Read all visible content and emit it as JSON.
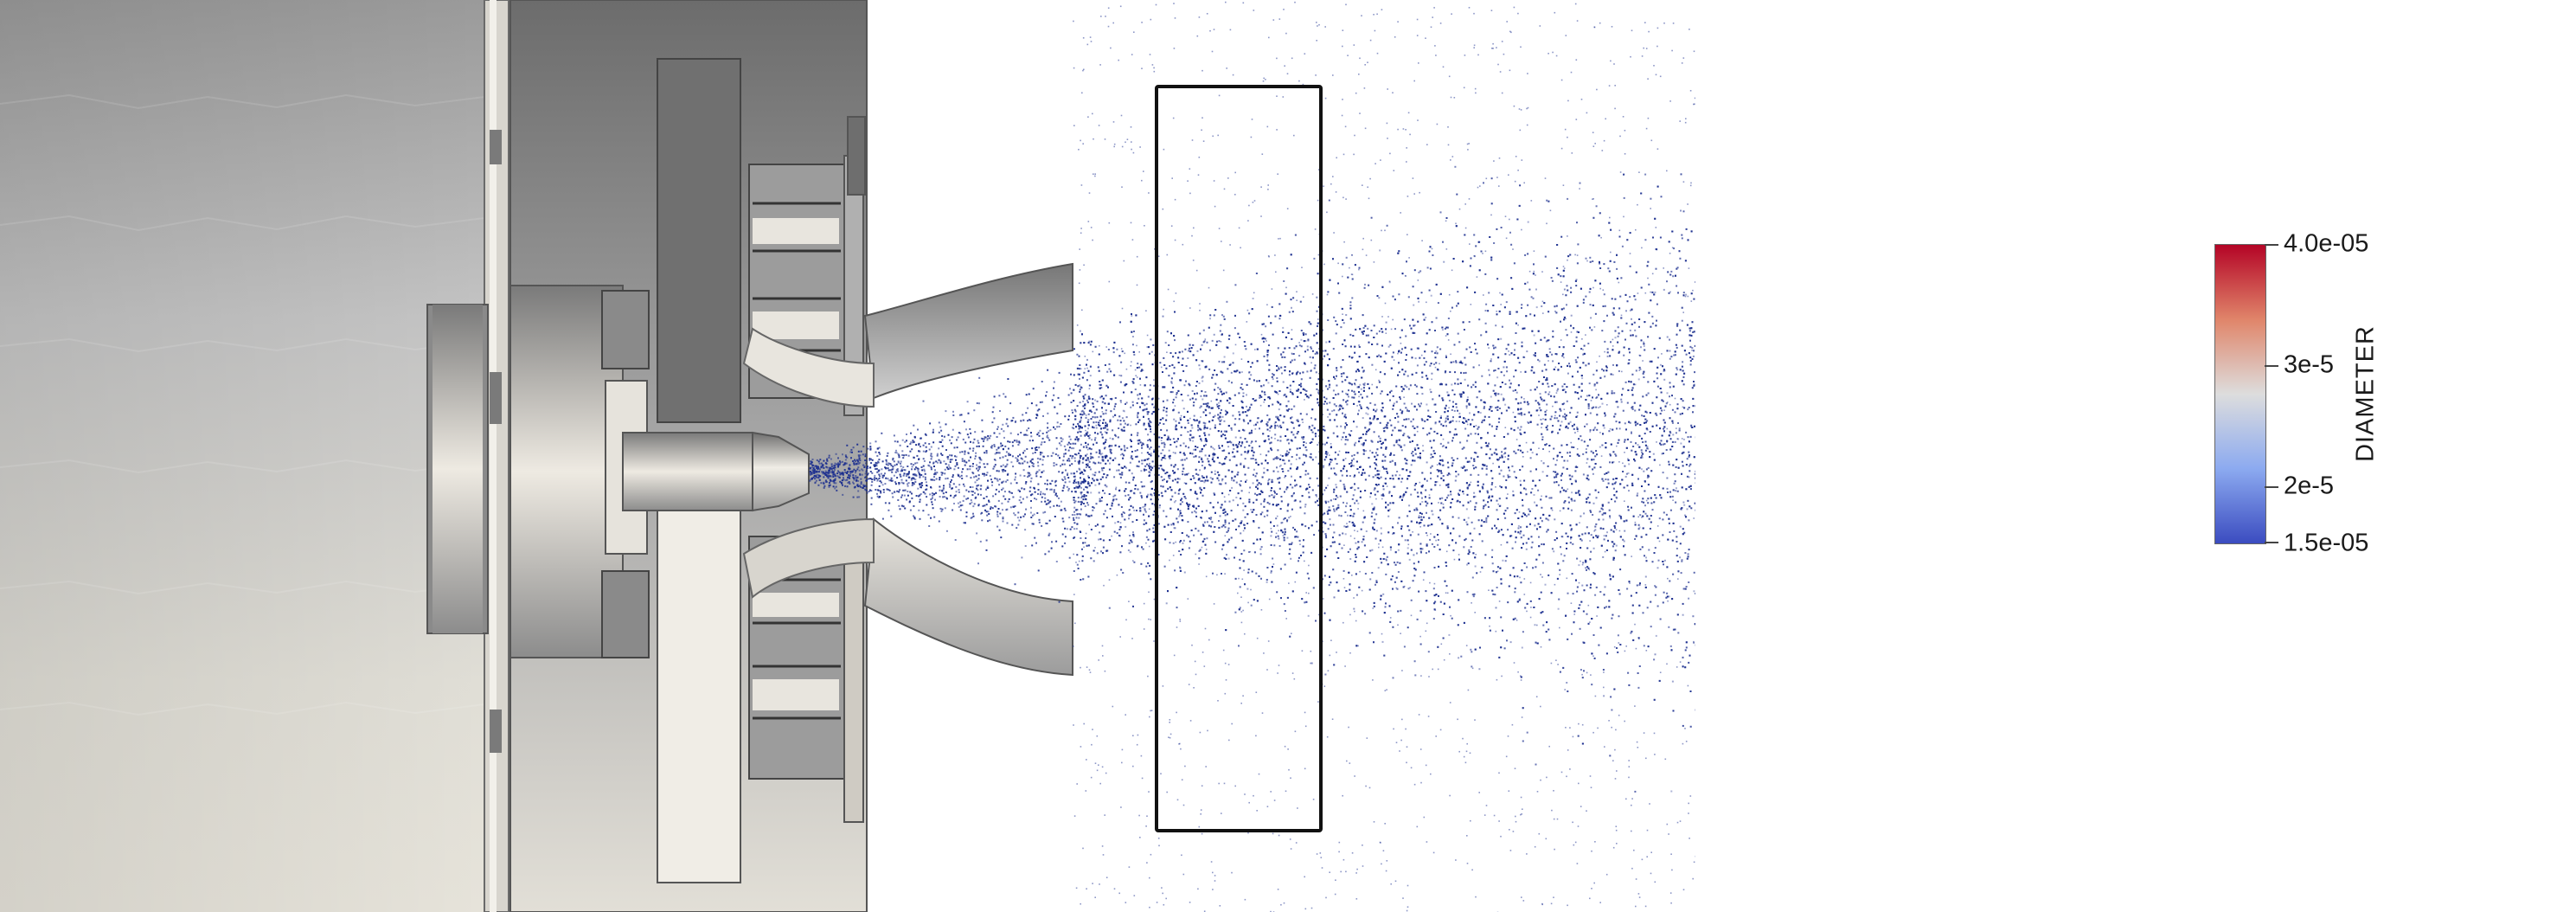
{
  "colorbar": {
    "title": "DIAMETER",
    "labels": [
      "4.0e-05",
      "3e-5",
      "2e-5",
      "1.5e-05"
    ],
    "colors": {
      "max": "#b40426",
      "mid": "#dddddd",
      "min": "#3b4cc0"
    }
  },
  "particles": {
    "color": "#1c2f8f"
  }
}
